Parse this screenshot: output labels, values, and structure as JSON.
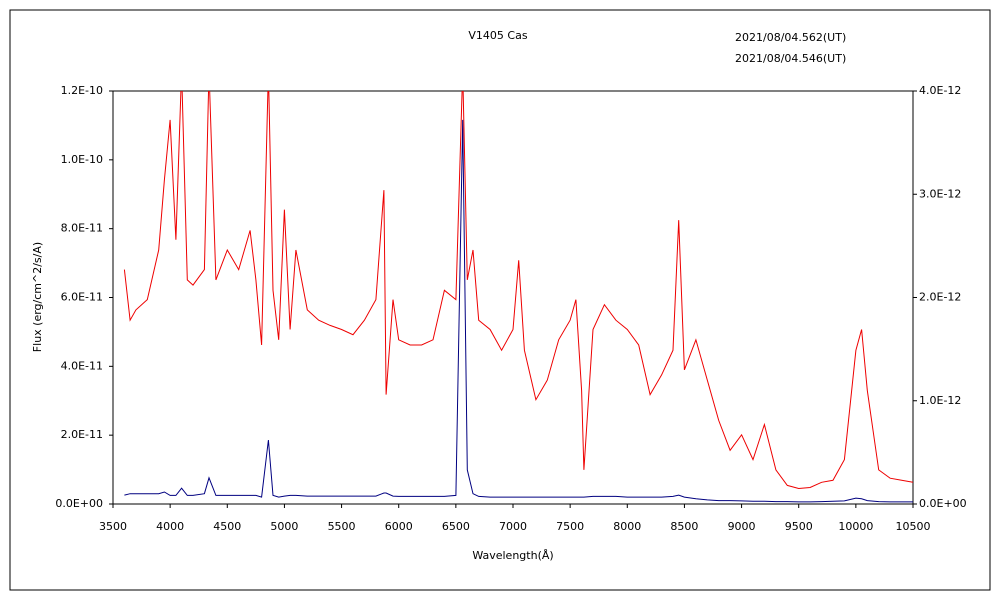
{
  "chart_data": {
    "type": "line",
    "title": "V1405 Cas",
    "x_label": "Wavelength(Å)",
    "y_label": "Flux (erg/cm^2/s/A)",
    "xlim": [
      3500,
      10500
    ],
    "xticks": [
      3500,
      4000,
      4500,
      5000,
      5500,
      6000,
      6500,
      7000,
      7500,
      8000,
      8500,
      9000,
      9500,
      10000,
      10500
    ],
    "ylim": [
      0,
      1.2e-10
    ],
    "yticks": [
      {
        "value": 0,
        "label": "0.0E+00"
      },
      {
        "value": 2e-11,
        "label": "2.0E-11"
      },
      {
        "value": 4e-11,
        "label": "4.0E-11"
      },
      {
        "value": 6e-11,
        "label": "6.0E-11"
      },
      {
        "value": 8e-11,
        "label": "8.0E-11"
      },
      {
        "value": 1e-10,
        "label": "1.0E-10"
      },
      {
        "value": 1.2e-10,
        "label": "1.2E-10"
      }
    ],
    "y2lim": [
      0,
      4e-12
    ],
    "y2ticks": [
      {
        "value": 0,
        "label": "0.0E+00"
      },
      {
        "value": 1e-12,
        "label": "1.0E-12"
      },
      {
        "value": 2e-12,
        "label": "2.0E-12"
      },
      {
        "value": 3e-12,
        "label": "3.0E-12"
      },
      {
        "value": 4e-12,
        "label": "4.0E-12"
      }
    ],
    "x": [
      3600,
      3650,
      3700,
      3800,
      3900,
      3950,
      4000,
      4050,
      4100,
      4150,
      4200,
      4300,
      4340,
      4400,
      4500,
      4600,
      4700,
      4750,
      4800,
      4860,
      4900,
      4950,
      5000,
      5050,
      5100,
      5200,
      5300,
      5400,
      5500,
      5600,
      5700,
      5800,
      5870,
      5890,
      5950,
      6000,
      6100,
      6200,
      6300,
      6400,
      6500,
      6560,
      6600,
      6650,
      6700,
      6800,
      6900,
      7000,
      7050,
      7100,
      7200,
      7300,
      7400,
      7500,
      7550,
      7600,
      7620,
      7700,
      7800,
      7900,
      8000,
      8100,
      8200,
      8300,
      8400,
      8450,
      8500,
      8600,
      8700,
      8800,
      8900,
      9000,
      9100,
      9200,
      9300,
      9400,
      9500,
      9600,
      9700,
      9800,
      9900,
      10000,
      10050,
      10100,
      10200,
      10300,
      10400,
      10500
    ],
    "series": [
      {
        "name": "2021/08/04.562(UT)",
        "color": "#ee0000",
        "axis": "y2",
        "values": [
          2.27e-12,
          1.78e-12,
          1.88e-12,
          1.98e-12,
          2.46e-12,
          3.14e-12,
          3.72e-12,
          2.56e-12,
          4.2e-12,
          2.17e-12,
          2.12e-12,
          2.27e-12,
          4.2e-12,
          2.17e-12,
          2.46e-12,
          2.27e-12,
          2.65e-12,
          2.17e-12,
          1.54e-12,
          4.2e-12,
          2.07e-12,
          1.59e-12,
          2.85e-12,
          1.69e-12,
          2.46e-12,
          1.88e-12,
          1.78e-12,
          1.73e-12,
          1.69e-12,
          1.64e-12,
          1.78e-12,
          1.98e-12,
          3.04e-12,
          1.06e-12,
          1.98e-12,
          1.59e-12,
          1.54e-12,
          1.54e-12,
          1.59e-12,
          2.07e-12,
          1.98e-12,
          4.2e-12,
          2.17e-12,
          2.46e-12,
          1.78e-12,
          1.69e-12,
          1.49e-12,
          1.69e-12,
          2.36e-12,
          1.49e-12,
          1.01e-12,
          1.2e-12,
          1.59e-12,
          1.78e-12,
          1.98e-12,
          1.1e-12,
          3.3e-13,
          1.69e-12,
          1.93e-12,
          1.78e-12,
          1.69e-12,
          1.54e-12,
          1.06e-12,
          1.25e-12,
          1.49e-12,
          2.75e-12,
          1.3e-12,
          1.59e-12,
          1.2e-12,
          8.1e-13,
          5.2e-13,
          6.7e-13,
          4.3e-13,
          7.7e-13,
          3.3e-13,
          1.8e-13,
          1.5e-13,
          1.6e-13,
          2.1e-13,
          2.3e-13,
          4.3e-13,
          1.49e-12,
          1.69e-12,
          1.1e-12,
          3.3e-13,
          2.5e-13,
          2.3e-13,
          2.1e-13
        ]
      },
      {
        "name": "2021/08/04.546(UT)",
        "color": "#000080",
        "values": [
          2.6e-12,
          3e-12,
          3e-12,
          3e-12,
          3e-12,
          3.5e-12,
          2.5e-12,
          2.5e-12,
          4.6e-12,
          2.5e-12,
          2.5e-12,
          3e-12,
          7.6e-12,
          2.5e-12,
          2.5e-12,
          2.5e-12,
          2.5e-12,
          2.5e-12,
          2e-12,
          1.86e-11,
          2.5e-12,
          2e-12,
          2.3e-12,
          2.5e-12,
          2.5e-12,
          2.3e-12,
          2.3e-12,
          2.3e-12,
          2.3e-12,
          2.3e-12,
          2.3e-12,
          2.3e-12,
          3.2e-12,
          3.2e-12,
          2.3e-12,
          2.2e-12,
          2.2e-12,
          2.2e-12,
          2.2e-12,
          2.2e-12,
          2.5e-12,
          1.116e-10,
          9.9e-12,
          3e-12,
          2.2e-12,
          2e-12,
          2e-12,
          2e-12,
          2e-12,
          2e-12,
          2e-12,
          2e-12,
          2e-12,
          2e-12,
          2e-12,
          2e-12,
          2e-12,
          2.2e-12,
          2.2e-12,
          2.2e-12,
          2e-12,
          2e-12,
          2e-12,
          2e-12,
          2.2e-12,
          2.6e-12,
          2e-12,
          1.5e-12,
          1.2e-12,
          1e-12,
          1e-12,
          9e-13,
          8e-13,
          8e-13,
          7e-13,
          7e-13,
          6e-13,
          6e-13,
          7e-13,
          8e-13,
          9e-13,
          1.7e-12,
          1.5e-12,
          1e-12,
          7e-13,
          6e-13,
          6e-13,
          6e-13
        ]
      }
    ]
  }
}
